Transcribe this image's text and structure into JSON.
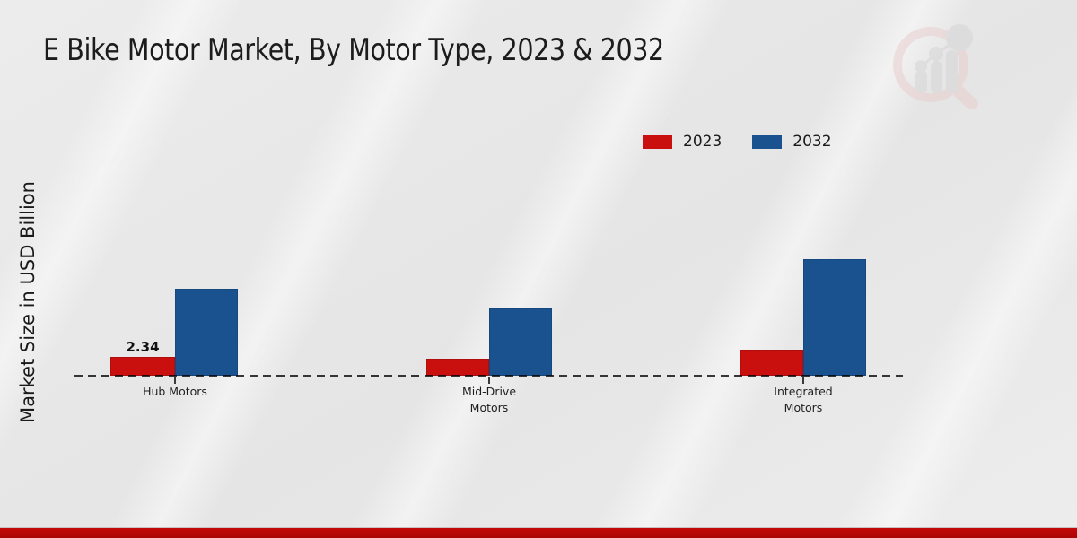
{
  "page": {
    "title": "E Bike Motor Market, By Motor Type, 2023 & 2032",
    "ylabel": "Market Size in USD Billion"
  },
  "legend": {
    "items": [
      {
        "label": "2023",
        "color": "#c9100f"
      },
      {
        "label": "2032",
        "color": "#1a518f"
      }
    ]
  },
  "watermark": {
    "icon": "magnifier-bar-chart-logo"
  },
  "colors": {
    "series_2023": "#c9100f",
    "series_2032": "#1a518f",
    "footer_bar": "#b10505",
    "background": "#e8e8e8",
    "text": "#1a1a1a"
  },
  "chart_data": {
    "type": "bar",
    "title": "E Bike Motor Market, By Motor Type, 2023 & 2032",
    "ylabel": "Market Size in USD Billion",
    "categories": [
      "Hub Motors",
      "Mid-Drive Motors",
      "Integrated Motors"
    ],
    "series": [
      {
        "name": "2023",
        "color": "#c9100f",
        "values": [
          2.34,
          2.1,
          3.2
        ]
      },
      {
        "name": "2032",
        "color": "#1a518f",
        "values": [
          10.8,
          8.4,
          14.5
        ]
      }
    ],
    "data_labels": [
      {
        "series_index": 0,
        "category_index": 0,
        "text": "2.34"
      }
    ],
    "ylim": [
      0,
      16
    ],
    "grid": false,
    "baseline_style": "dashed",
    "legend_position": "top-right"
  }
}
